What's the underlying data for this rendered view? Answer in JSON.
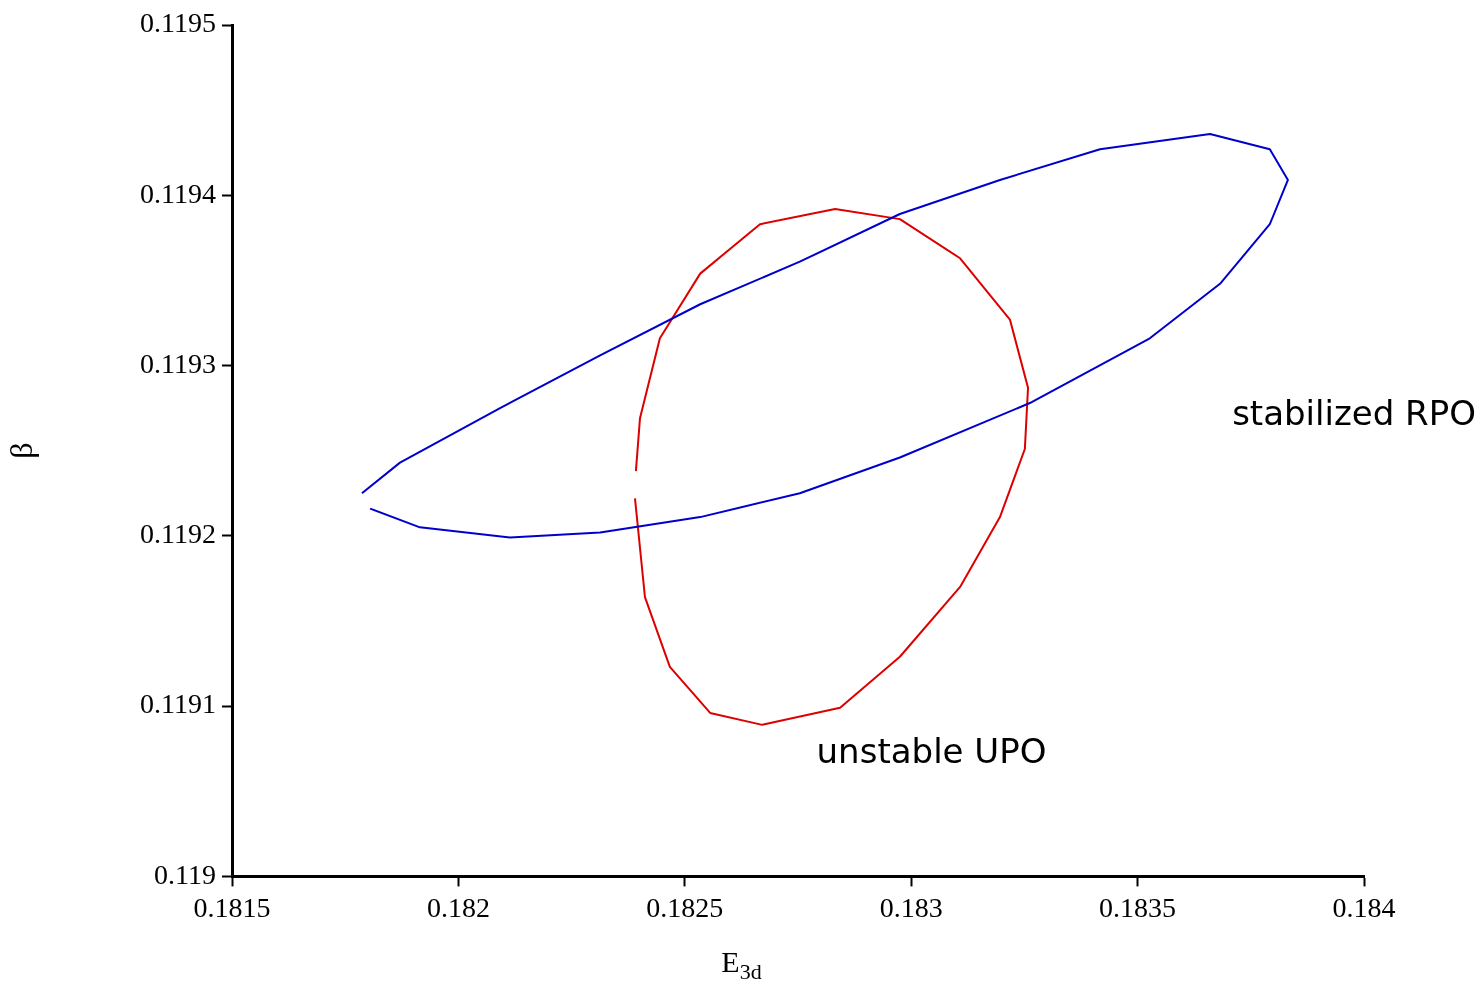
{
  "chart_data": {
    "type": "line",
    "xlabel": "E$_{3d}$",
    "ylabel": "β",
    "xlim": [
      0.1815,
      0.184
    ],
    "xticks": [
      0.1815,
      0.182,
      0.1825,
      0.183,
      0.1835,
      0.184
    ],
    "ylim": [
      0.119,
      0.1195
    ],
    "yticks": [
      0.119,
      0.1191,
      0.1192,
      0.1193,
      0.1194,
      0.1195
    ],
    "grid": false,
    "legend": false,
    "marker": "none",
    "line_style": "solid",
    "series": [
      {
        "name": "stabilized RPO",
        "color": "#0000cc",
        "x": [
          0.181787,
          0.181871,
          0.182092,
          0.182313,
          0.182534,
          0.182754,
          0.182975,
          0.183196,
          0.183417,
          0.18366,
          0.183792,
          0.183832,
          0.183792,
          0.183682,
          0.183527,
          0.183262,
          0.182975,
          0.182754,
          0.182534,
          0.182313,
          0.182114,
          0.181915,
          0.181805
        ],
        "values": [
          0.119225,
          0.119243,
          0.119275,
          0.119306,
          0.119336,
          0.119361,
          0.119389,
          0.119409,
          0.119427,
          0.119436,
          0.119427,
          0.119409,
          0.119383,
          0.119348,
          0.119316,
          0.119278,
          0.119246,
          0.119225,
          0.119211,
          0.119202,
          0.119199,
          0.119205,
          0.119216
        ]
      },
      {
        "name": "unstable UPO",
        "color": "#dd0000",
        "x": [
          0.18239,
          0.182412,
          0.182467,
          0.182556,
          0.182671,
          0.182843,
          0.182975,
          0.183108,
          0.183196,
          0.183251,
          0.183258,
          0.183218,
          0.183108,
          0.182975,
          0.182832,
          0.182666,
          0.182534,
          0.182445,
          0.182401,
          0.182392
        ],
        "values": [
          0.119222,
          0.119164,
          0.119123,
          0.119096,
          0.119089,
          0.119099,
          0.119129,
          0.11917,
          0.119211,
          0.119251,
          0.119287,
          0.119327,
          0.119363,
          0.119386,
          0.119392,
          0.119383,
          0.119354,
          0.119316,
          0.119269,
          0.119238
        ]
      }
    ]
  }
}
